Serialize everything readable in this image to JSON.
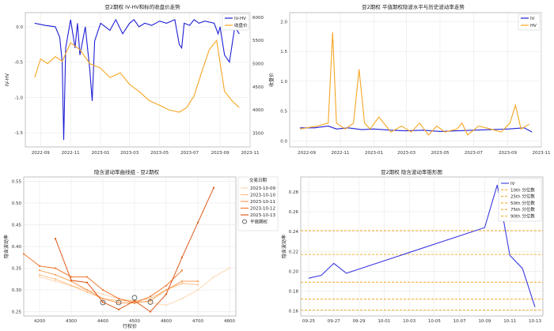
{
  "chart_data": [
    {
      "type": "line",
      "title": "豆2期权 IV-HV和标的收盘价走势",
      "ylabel": "IV-HV",
      "y2label": "收盘价",
      "x_dates": [
        "2022-08-01",
        "2023-11-01"
      ],
      "x_ticks": [
        "2022-09",
        "2022-11",
        "2023-01",
        "2023-03",
        "2023-05",
        "2023-07",
        "2023-09",
        "2023-11"
      ],
      "x_tick_dates": [
        "2022-09-01",
        "2022-11-01",
        "2023-01-01",
        "2023-03-01",
        "2023-05-01",
        "2023-07-01",
        "2023-09-01",
        "2023-11-01"
      ],
      "ylim": [
        -1.7,
        0.2
      ],
      "y_ticks": [
        "0.0",
        "-0.5",
        "-1.0",
        "-1.5"
      ],
      "y_tick_values": [
        0.0,
        -0.5,
        -1.0,
        -1.5
      ],
      "y2lim": [
        3200,
        6100
      ],
      "y2_ticks": [
        "3500",
        "4000",
        "4500",
        "5000",
        "5500",
        "6000"
      ],
      "y2_tick_values": [
        3500,
        4000,
        4500,
        5000,
        5500,
        6000
      ],
      "legend": [
        "IV-HV",
        "收盘价"
      ],
      "legend_placement": "top-right",
      "grid": true,
      "series": [
        {
          "name": "IV-HV",
          "color": "#1f1fd6",
          "axis": "left",
          "x": [
            "2022-08-20",
            "2022-09-10",
            "2022-10-01",
            "2022-10-10",
            "2022-10-15",
            "2022-10-18",
            "2022-10-22",
            "2022-11-01",
            "2022-11-10",
            "2022-11-15",
            "2022-11-20",
            "2022-12-01",
            "2022-12-10",
            "2022-12-15",
            "2022-12-20",
            "2023-01-01",
            "2023-01-20",
            "2023-02-01",
            "2023-02-15",
            "2023-03-01",
            "2023-03-10",
            "2023-03-20",
            "2023-04-01",
            "2023-04-15",
            "2023-05-01",
            "2023-05-15",
            "2023-06-01",
            "2023-06-10",
            "2023-06-15",
            "2023-06-20",
            "2023-07-01",
            "2023-07-10",
            "2023-07-20",
            "2023-08-01",
            "2023-08-20",
            "2023-08-28",
            "2023-09-01",
            "2023-09-10",
            "2023-09-20",
            "2023-10-01",
            "2023-10-10"
          ],
          "values": [
            0.05,
            0.02,
            0.0,
            -0.15,
            -0.5,
            -1.6,
            -0.3,
            0.1,
            -0.3,
            0.05,
            -0.4,
            0.0,
            -0.6,
            -1.05,
            -0.2,
            0.05,
            -0.05,
            0.1,
            -0.1,
            0.05,
            0.1,
            0.0,
            0.05,
            0.02,
            0.08,
            0.05,
            0.1,
            -0.25,
            -0.3,
            0.05,
            0.02,
            0.1,
            0.05,
            0.08,
            0.05,
            -0.1,
            0.0,
            -0.4,
            -0.5,
            0.0,
            -0.1
          ]
        },
        {
          "name": "收盘价",
          "color": "#f5a623",
          "axis": "right",
          "x": [
            "2022-08-20",
            "2022-09-01",
            "2022-09-15",
            "2022-10-01",
            "2022-10-15",
            "2022-11-01",
            "2022-11-20",
            "2022-12-10",
            "2023-01-01",
            "2023-01-20",
            "2023-02-10",
            "2023-03-01",
            "2023-03-20",
            "2023-04-10",
            "2023-05-01",
            "2023-05-20",
            "2023-06-10",
            "2023-06-25",
            "2023-07-10",
            "2023-07-25",
            "2023-08-10",
            "2023-08-25",
            "2023-09-10",
            "2023-09-25",
            "2023-10-10"
          ],
          "values": [
            4700,
            5100,
            5000,
            5150,
            5050,
            5450,
            5300,
            5000,
            4900,
            4700,
            4800,
            4550,
            4400,
            4200,
            4100,
            4000,
            3950,
            4050,
            4300,
            4800,
            5300,
            5500,
            4400,
            4200,
            4050
          ]
        }
      ]
    },
    {
      "type": "line",
      "title": "豆2期权 平值期权隐波水平与历史波动率走势",
      "x_dates": [
        "2022-08-01",
        "2023-11-01"
      ],
      "x_ticks": [
        "2022-09",
        "2022-11",
        "2023-01",
        "2023-03",
        "2023-05",
        "2023-07",
        "2023-09",
        "2023-11"
      ],
      "x_tick_dates": [
        "2022-09-01",
        "2022-11-01",
        "2023-01-01",
        "2023-03-01",
        "2023-05-01",
        "2023-07-01",
        "2023-09-01",
        "2023-11-01"
      ],
      "ylim": [
        -0.1,
        2.15
      ],
      "y_ticks": [
        "0.0",
        "0.5",
        "1.0",
        "1.5",
        "2.0"
      ],
      "y_tick_values": [
        0.0,
        0.5,
        1.0,
        1.5,
        2.0
      ],
      "legend": [
        "IV",
        "HV"
      ],
      "legend_placement": "top-right",
      "grid": true,
      "series": [
        {
          "name": "IV",
          "color": "#1f1fd6",
          "x": [
            "2022-08-20",
            "2022-09-15",
            "2022-10-10",
            "2022-10-25",
            "2022-11-15",
            "2022-12-10",
            "2023-01-01",
            "2023-02-01",
            "2023-03-01",
            "2023-04-01",
            "2023-05-01",
            "2023-06-01",
            "2023-07-01",
            "2023-08-01",
            "2023-09-01",
            "2023-10-01",
            "2023-10-15"
          ],
          "values": [
            0.22,
            0.22,
            0.25,
            0.2,
            0.22,
            0.19,
            0.2,
            0.18,
            0.17,
            0.18,
            0.16,
            0.17,
            0.18,
            0.19,
            0.2,
            0.22,
            0.15
          ]
        },
        {
          "name": "HV",
          "color": "#f5a623",
          "x": [
            "2022-08-20",
            "2022-09-20",
            "2022-10-10",
            "2022-10-18",
            "2022-10-25",
            "2022-11-10",
            "2022-11-25",
            "2022-12-05",
            "2022-12-15",
            "2022-12-25",
            "2023-01-10",
            "2023-02-01",
            "2023-02-20",
            "2023-03-10",
            "2023-03-25",
            "2023-04-10",
            "2023-04-25",
            "2023-05-10",
            "2023-06-01",
            "2023-06-10",
            "2023-06-20",
            "2023-07-10",
            "2023-08-01",
            "2023-08-20",
            "2023-09-05",
            "2023-09-15",
            "2023-09-25",
            "2023-10-10"
          ],
          "values": [
            0.2,
            0.25,
            0.3,
            1.82,
            0.3,
            0.2,
            0.3,
            1.2,
            0.3,
            0.2,
            0.4,
            0.15,
            0.25,
            0.15,
            0.3,
            0.1,
            0.25,
            0.15,
            0.2,
            0.3,
            0.1,
            0.25,
            0.2,
            0.15,
            0.3,
            0.6,
            0.2,
            0.28
          ]
        }
      ]
    },
    {
      "type": "line",
      "title": "隐含波动率曲线组 - 豆2期权",
      "xlabel": "行权价",
      "ylabel": "隐含波动率",
      "xlim": [
        4150,
        4820
      ],
      "x_ticks": [
        "4200",
        "4300",
        "4400",
        "4500",
        "4600",
        "4700",
        "4800"
      ],
      "x_tick_values": [
        4200,
        4300,
        4400,
        4500,
        4600,
        4700,
        4800
      ],
      "ylim": [
        0.24,
        0.56
      ],
      "y_ticks": [
        "0.25",
        "0.30",
        "0.35",
        "0.40",
        "0.45",
        "0.50",
        "0.55"
      ],
      "y_tick_values": [
        0.25,
        0.3,
        0.35,
        0.4,
        0.45,
        0.5,
        0.55
      ],
      "legend_title": "交易日期",
      "legend_placement": "top-right",
      "grid": true,
      "series": [
        {
          "name": "2023-10-09",
          "color": "#fdd9b5",
          "x": [
            4200,
            4250,
            4300,
            4350,
            4400,
            4450,
            4500,
            4550,
            4600,
            4650,
            4700,
            4750,
            4800
          ],
          "values": [
            0.33,
            0.32,
            0.31,
            0.3,
            0.29,
            0.28,
            0.275,
            0.27,
            0.265,
            0.28,
            0.3,
            0.33,
            0.35
          ]
        },
        {
          "name": "2023-10-10",
          "color": "#fcbf86",
          "x": [
            4200,
            4250,
            4300,
            4350,
            4400,
            4450,
            4500,
            4550,
            4600,
            4650,
            4700
          ],
          "values": [
            0.335,
            0.325,
            0.31,
            0.295,
            0.28,
            0.275,
            0.275,
            0.28,
            0.3,
            0.315,
            0.312
          ]
        },
        {
          "name": "2023-10-11",
          "color": "#f9a05a",
          "x": [
            4200,
            4250,
            4300,
            4350,
            4400,
            4450,
            4500,
            4550,
            4600,
            4650,
            4700
          ],
          "values": [
            0.345,
            0.335,
            0.32,
            0.3,
            0.28,
            0.27,
            0.27,
            0.275,
            0.3,
            0.32,
            0.32
          ]
        },
        {
          "name": "2023-10-12",
          "color": "#f07a32",
          "x": [
            4150,
            4200,
            4250,
            4300,
            4350,
            4400,
            4450,
            4500,
            4550,
            4600,
            4650
          ],
          "values": [
            0.383,
            0.355,
            0.35,
            0.33,
            0.33,
            0.3,
            0.28,
            0.27,
            0.285,
            0.31,
            0.345
          ]
        },
        {
          "name": "2023-10-13",
          "color": "#dd5a1a",
          "x": [
            4250,
            4300,
            4350,
            4400,
            4450,
            4500,
            4550,
            4600,
            4650,
            4700,
            4750
          ],
          "values": [
            0.418,
            0.322,
            0.317,
            0.272,
            0.255,
            0.275,
            0.25,
            0.29,
            0.375,
            0.455,
            0.535
          ]
        }
      ],
      "atm_label": "平值期权",
      "atm_points": {
        "x": [
          4400,
          4450,
          4500,
          4550
        ],
        "values": [
          0.271,
          0.271,
          0.282,
          0.272
        ]
      }
    },
    {
      "type": "line",
      "title": "豆2期权 隐含波动率锥形图",
      "ylabel": "隐含波动率",
      "categories": [
        "09-25",
        "09-26",
        "09-27",
        "09-28",
        "09-29",
        "09-30",
        "10-01",
        "10-02",
        "10-03",
        "10-04",
        "10-05",
        "10-06",
        "10-07",
        "10-08",
        "10-09",
        "10-10",
        "10-11",
        "10-12",
        "10-13"
      ],
      "x_ticks": [
        "09-25",
        "09-27",
        "09-29",
        "10-01",
        "10-03",
        "10-05",
        "10-07",
        "10-09",
        "10-11",
        "10-13"
      ],
      "ylim": [
        0.155,
        0.295
      ],
      "y_ticks": [
        "0.16",
        "0.18",
        "0.20",
        "0.22",
        "0.24",
        "0.26",
        "0.28"
      ],
      "y_tick_values": [
        0.16,
        0.18,
        0.2,
        0.22,
        0.24,
        0.26,
        0.28
      ],
      "legend_placement": "top-right",
      "grid": true,
      "series": [
        {
          "name": "IV",
          "color": "#3a3ae0",
          "x": [
            "09-25",
            "09-26",
            "09-27",
            "09-28",
            "10-09",
            "10-10",
            "10-11",
            "10-12",
            "10-13"
          ],
          "values": [
            0.193,
            0.196,
            0.208,
            0.198,
            0.244,
            0.287,
            0.216,
            0.203,
            0.164
          ]
        }
      ],
      "percentiles": [
        {
          "name": "10th 分位数",
          "value": 0.161
        },
        {
          "name": "25th 分位数",
          "value": 0.172
        },
        {
          "name": "50th 分位数",
          "value": 0.189
        },
        {
          "name": "75th 分位数",
          "value": 0.217
        },
        {
          "name": "90th 分位数",
          "value": 0.241
        }
      ],
      "percentile_color": "#f5a623"
    }
  ]
}
